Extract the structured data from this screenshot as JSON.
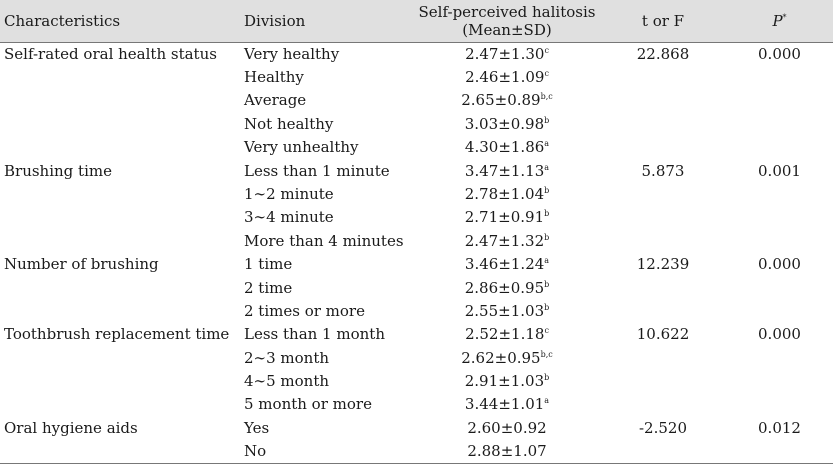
{
  "header": {
    "characteristics": "Characteristics",
    "division": "Division",
    "halitosis_line1": "Self-perceived halitosis",
    "halitosis_line2": "(Mean±SD)",
    "t_or_f": "t or F",
    "p_label": "P",
    "p_sup": "*"
  },
  "rows": [
    {
      "char": "Self-rated oral health status",
      "div": "Very healthy",
      "val": "2.47±1.30",
      "sup": "c",
      "t": "22.868",
      "p": "0.000"
    },
    {
      "char": "",
      "div": "Healthy",
      "val": "2.46±1.09",
      "sup": "c",
      "t": "",
      "p": ""
    },
    {
      "char": "",
      "div": "Average",
      "val": "2.65±0.89",
      "sup": "b,c",
      "t": "",
      "p": ""
    },
    {
      "char": "",
      "div": "Not healthy",
      "val": "3.03±0.98",
      "sup": "b",
      "t": "",
      "p": ""
    },
    {
      "char": "",
      "div": "Very unhealthy",
      "val": "4.30±1.86",
      "sup": "a",
      "t": "",
      "p": ""
    },
    {
      "char": "Brushing time",
      "div": "Less than 1 minute",
      "val": "3.47±1.13",
      "sup": "a",
      "t": "5.873",
      "p": "0.001"
    },
    {
      "char": "",
      "div": "1∼2 minute",
      "val": "2.78±1.04",
      "sup": "b",
      "t": "",
      "p": ""
    },
    {
      "char": "",
      "div": "3∼4 minute",
      "val": "2.71±0.91",
      "sup": "b",
      "t": "",
      "p": ""
    },
    {
      "char": "",
      "div": "More than 4 minutes",
      "val": "2.47±1.32",
      "sup": "b",
      "t": "",
      "p": ""
    },
    {
      "char": "Number of brushing",
      "div": "1 time",
      "val": "3.46±1.24",
      "sup": "a",
      "t": "12.239",
      "p": "0.000"
    },
    {
      "char": "",
      "div": "2 time",
      "val": "2.86±0.95",
      "sup": "b",
      "t": "",
      "p": ""
    },
    {
      "char": "",
      "div": "2 times or more",
      "val": "2.55±1.03",
      "sup": "b",
      "t": "",
      "p": ""
    },
    {
      "char": "Toothbrush replacement time",
      "div": "Less than 1 month",
      "val": "2.52±1.18",
      "sup": "c",
      "t": "10.622",
      "p": "0.000"
    },
    {
      "char": "",
      "div": "2∼3 month",
      "val": "2.62±0.95",
      "sup": "b,c",
      "t": "",
      "p": ""
    },
    {
      "char": "",
      "div": "4∼5 month",
      "val": "2.91±1.03",
      "sup": "b",
      "t": "",
      "p": ""
    },
    {
      "char": "",
      "div": "5 month or more",
      "val": "3.44±1.01",
      "sup": "a",
      "t": "",
      "p": ""
    },
    {
      "char": "Oral hygiene aids",
      "div": "Yes",
      "val": "2.60±0.92",
      "sup": "",
      "t": "-2.520",
      "p": "0.012"
    },
    {
      "char": "",
      "div": "No",
      "val": "2.88±1.07",
      "sup": "",
      "t": "",
      "p": ""
    }
  ]
}
